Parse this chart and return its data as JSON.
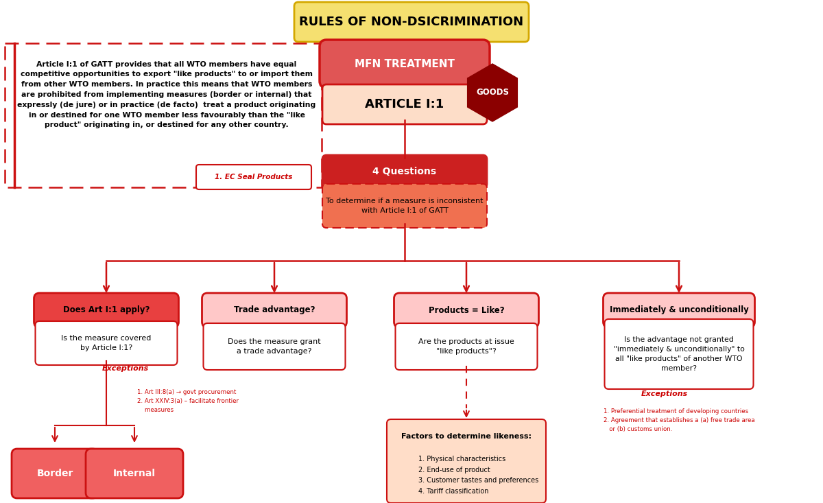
{
  "title": "RULES OF NON-DSICRIMINATION",
  "title_bg": "#f5e070",
  "title_border": "#d4a800",
  "bg_color": "#ffffff",
  "arrow_color": "#cc1111",
  "left_box_text": "Article I:1 of GATT provides that all WTO members have equal\ncompetitive opportunities to export \"like products\" to or import them\nfrom other WTO members. In practice this means that WTO members\nare prohibited from implementing measures (border or internal) that\nexpressly (de jure) or in practice (de facto)  treat a product originating\nin or destined for one WTO member less favourably than the \"like\nproduct\" originating in, or destined for any other country.",
  "ec_seal_text": "1. EC Seal Products",
  "mfn_text": "MFN TREATMENT",
  "goods_text": "GOODS",
  "article_text": "ARTICLE I:1",
  "four_q_text": "4 Questions",
  "four_q_sub": "To determine if a measure is inconsistent\nwith Article I:1 of GATT",
  "q1_title": "Does Art I:1 apply?",
  "q1_sub": "Is the measure covered\nby Article I:1?",
  "q1_exc_label": "Exceptions",
  "q1_exc_text": "1. Art III:8(a) → govt procurement\n2. Art XXIV:3(a) – facilitate frontier\n    measures",
  "q2_title": "Trade advantage?",
  "q2_sub": "Does the measure grant\na trade advantage?",
  "q3_title": "Products = Like?",
  "q3_sub": "Are the products at issue\n\"like products\"?",
  "q3_factors_title": "Factors to determine likeness:",
  "q3_factors": "1. Physical characteristics\n2. End-use of product\n3. Customer tastes and preferences\n4. Tariff classification",
  "q4_title": "Immediately & unconditionally",
  "q4_sub": "Is the advantage not granted\n\"immediately & unconditionally\" to\nall \"like products\" of another WTO\nmember?",
  "q4_exc_label": "Exceptions",
  "q4_exc_text": "1. Preferential treatment of developing countries\n2. Agreement that establishes a (a) free trade area\n   or (b) customs union.",
  "border_text": "Border",
  "internal_text": "Internal",
  "mfn_color": "#e05555",
  "goods_color": "#8b0000",
  "article_color": "#fdddc8",
  "four_q_color": "#cc2020",
  "four_q_sub_color": "#f07050",
  "q1_title_color": "#e84040",
  "q_sub_color": "#ffc8c8",
  "q2_title_color": "#ffc8c8",
  "q3_title_color": "#ffc8c8",
  "q4_title_color": "#ffc8c8",
  "border_color": "#f06060",
  "factors_color": "#ffddc8",
  "red_edge": "#cc1111",
  "white": "#ffffff",
  "black": "#000000"
}
